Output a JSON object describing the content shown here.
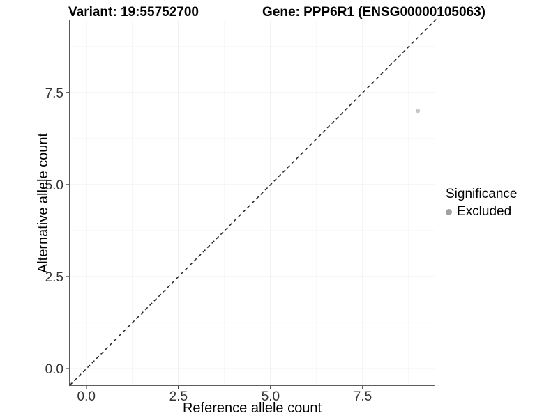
{
  "chart_data": {
    "type": "scatter",
    "titles": {
      "left": "Variant: 19:55752700",
      "right": "Gene: PPP6R1 (ENSG00000105063)"
    },
    "xlabel": "Reference allele count",
    "ylabel": "Alternative allele count",
    "xlim": [
      -0.45,
      9.45
    ],
    "ylim": [
      -0.45,
      9.45
    ],
    "xticks": {
      "values": [
        0,
        2.5,
        5,
        7.5
      ],
      "labels": [
        "0.0",
        "2.5",
        "5.0",
        "7.5"
      ]
    },
    "yticks": {
      "values": [
        0,
        2.5,
        5,
        7.5
      ],
      "labels": [
        "0.0",
        "2.5",
        "5.0",
        "7.5"
      ]
    },
    "grid": {
      "minor": [
        1.25,
        3.75,
        6.25,
        8.75
      ],
      "major_color": "#e8e8e8",
      "minor_color": "#f3f3f3"
    },
    "identity_line": {
      "type": "y=x",
      "style": "dashed",
      "color": "#222222",
      "from": -0.45,
      "to": 9.55
    },
    "series": [
      {
        "name": "Excluded",
        "color": "#c7c7c7",
        "point_radius": 3,
        "points": [
          {
            "x": 9,
            "y": 7
          }
        ]
      }
    ],
    "legend": {
      "title": "Significance",
      "position": "right",
      "entries": [
        {
          "label": "Excluded",
          "swatch_color": "#a1a1a1"
        }
      ]
    },
    "style": {
      "background": "#ffffff",
      "axis_line_color": "#474747",
      "tick_color": "#333333",
      "tick_label_color": "#333333"
    }
  }
}
